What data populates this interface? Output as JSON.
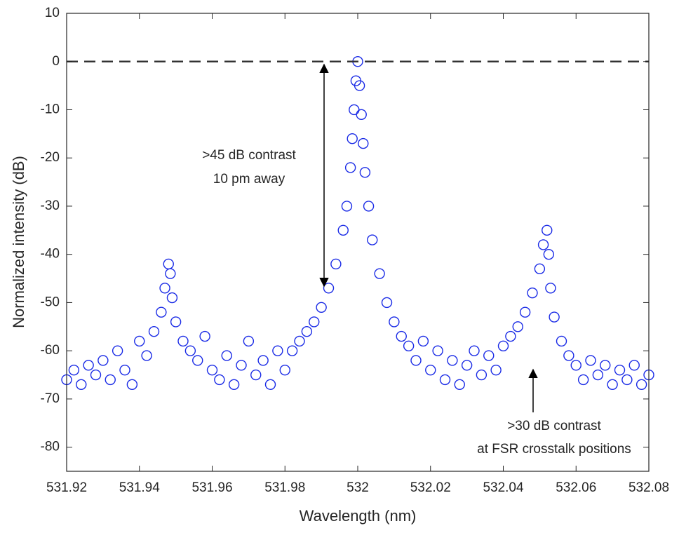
{
  "chart_data": {
    "type": "scatter",
    "x_label": "Wavelength (nm)",
    "y_label": "Normalized intensity (dB)",
    "color": "#1a2be6",
    "xlim": [
      531.92,
      532.08
    ],
    "ylim": [
      -85,
      10
    ],
    "xticks": [
      531.92,
      531.94,
      531.96,
      531.98,
      532,
      532.02,
      532.04,
      532.06,
      532.08
    ],
    "yticks": [
      10,
      0,
      -10,
      -20,
      -30,
      -40,
      -50,
      -60,
      -70,
      -80
    ],
    "reference_line": 0,
    "annotations": [
      {
        "lines": [
          ">45 dB contrast",
          "10 pm away"
        ]
      },
      {
        "lines": [
          ">30 dB contrast",
          "at FSR crosstalk positions"
        ]
      }
    ],
    "x": [
      531.92,
      531.922,
      531.924,
      531.926,
      531.928,
      531.93,
      531.932,
      531.934,
      531.936,
      531.938,
      531.94,
      531.942,
      531.944,
      531.946,
      531.947,
      531.948,
      531.9485,
      531.949,
      531.95,
      531.952,
      531.954,
      531.956,
      531.958,
      531.96,
      531.962,
      531.964,
      531.966,
      531.968,
      531.97,
      531.972,
      531.974,
      531.976,
      531.978,
      531.98,
      531.982,
      531.984,
      531.986,
      531.988,
      531.99,
      531.992,
      531.994,
      531.996,
      531.997,
      531.998,
      531.9985,
      531.999,
      531.9995,
      532.0,
      532.0005,
      532.001,
      532.0015,
      532.002,
      532.003,
      532.004,
      532.006,
      532.008,
      532.01,
      532.012,
      532.014,
      532.016,
      532.018,
      532.02,
      532.022,
      532.024,
      532.026,
      532.028,
      532.03,
      532.032,
      532.034,
      532.036,
      532.038,
      532.04,
      532.042,
      532.044,
      532.046,
      532.048,
      532.05,
      532.051,
      532.052,
      532.0525,
      532.053,
      532.054,
      532.056,
      532.058,
      532.06,
      532.062,
      532.064,
      532.066,
      532.068,
      532.07,
      532.072,
      532.074,
      532.076,
      532.078,
      532.08
    ],
    "values": [
      -66,
      -64,
      -67,
      -63,
      -65,
      -62,
      -66,
      -60,
      -64,
      -67,
      -58,
      -61,
      -56,
      -52,
      -47,
      -42,
      -44,
      -49,
      -54,
      -58,
      -60,
      -62,
      -57,
      -64,
      -66,
      -61,
      -67,
      -63,
      -58,
      -65,
      -62,
      -67,
      -60,
      -64,
      -60,
      -58,
      -56,
      -54,
      -51,
      -47,
      -42,
      -35,
      -30,
      -22,
      -16,
      -10,
      -4,
      0,
      -5,
      -11,
      -17,
      -23,
      -30,
      -37,
      -44,
      -50,
      -54,
      -57,
      -59,
      -62,
      -58,
      -64,
      -60,
      -66,
      -62,
      -67,
      -63,
      -60,
      -65,
      -61,
      -64,
      -59,
      -57,
      -55,
      -52,
      -48,
      -43,
      -38,
      -35,
      -40,
      -47,
      -53,
      -58,
      -61,
      -63,
      -66,
      -62,
      -65,
      -63,
      -67,
      -64,
      -66,
      -63,
      -67,
      -65
    ]
  }
}
